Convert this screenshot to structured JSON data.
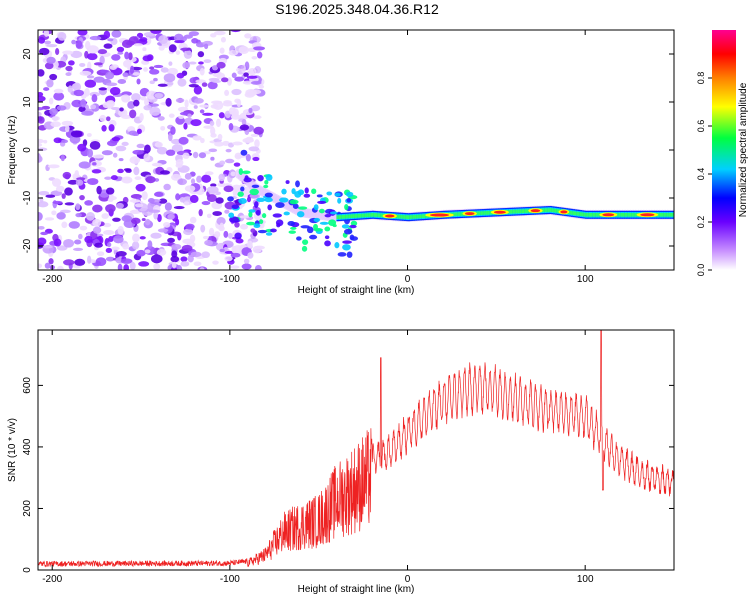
{
  "title": "S196.2025.348.04.36.R12",
  "chart_data": [
    {
      "type": "heatmap",
      "xlabel": "Height of straight line (km)",
      "ylabel": "Frequency (Hz)",
      "xlim": [
        -208,
        150
      ],
      "ylim": [
        -25,
        25
      ],
      "xticks": [
        -200,
        -100,
        0,
        100
      ],
      "yticks": [
        20,
        10,
        0,
        -10,
        -20
      ],
      "xtick_labels": [
        "-200",
        "-100",
        "0",
        "100"
      ],
      "ytick_labels": [
        "20",
        "10",
        "0",
        "-10",
        "-20"
      ],
      "colorbar": {
        "label": "Normalized spectral amplitude",
        "range": [
          0,
          1
        ],
        "ticks": [
          0.0,
          0.2,
          0.4,
          0.6,
          0.8
        ],
        "tick_labels": [
          "0.0",
          "0.2",
          "0.4",
          "0.6",
          "0.8"
        ],
        "colors": [
          "#f5e8ff",
          "#7f1aff",
          "#0000ff",
          "#00d8ff",
          "#00ff40",
          "#ffff00",
          "#ff7a00",
          "#ff0000",
          "#ff00a0"
        ]
      },
      "description_points": {
        "carrier_segments": [
          [
            -95,
            -5
          ],
          [
            -85,
            -8
          ],
          [
            -75,
            -10
          ],
          [
            -60,
            -13
          ],
          [
            -40,
            -14
          ],
          [
            -20,
            -13.5
          ],
          [
            0,
            -14
          ],
          [
            20,
            -13.5
          ],
          [
            50,
            -13
          ],
          [
            80,
            -12.5
          ],
          [
            100,
            -13.5
          ],
          [
            150,
            -13.5
          ]
        ],
        "noise_region_x": [
          -208,
          -92
        ]
      }
    },
    {
      "type": "line",
      "xlabel": "Height of straight line (km)",
      "ylabel": "SNR (10 * v/v)",
      "xlim": [
        -208,
        150
      ],
      "ylim": [
        0,
        780
      ],
      "xticks": [
        -200,
        -100,
        0,
        100
      ],
      "yticks": [
        0,
        200,
        400,
        600
      ],
      "xtick_labels": [
        "-200",
        "-100",
        "0",
        "100"
      ],
      "ytick_labels": [
        "0",
        "200",
        "400",
        "600"
      ],
      "color": "#ee2222",
      "envelope_x": [
        -208,
        -100,
        -90,
        -80,
        -70,
        -60,
        -50,
        -40,
        -30,
        -20,
        -10,
        0,
        10,
        20,
        30,
        40,
        50,
        60,
        70,
        80,
        90,
        100,
        110,
        120,
        130,
        140,
        150
      ],
      "envelope_y": [
        20,
        22,
        28,
        60,
        150,
        180,
        200,
        280,
        330,
        380,
        410,
        480,
        540,
        590,
        620,
        640,
        630,
        600,
        580,
        560,
        550,
        540,
        450,
        380,
        340,
        320,
        300
      ]
    }
  ]
}
